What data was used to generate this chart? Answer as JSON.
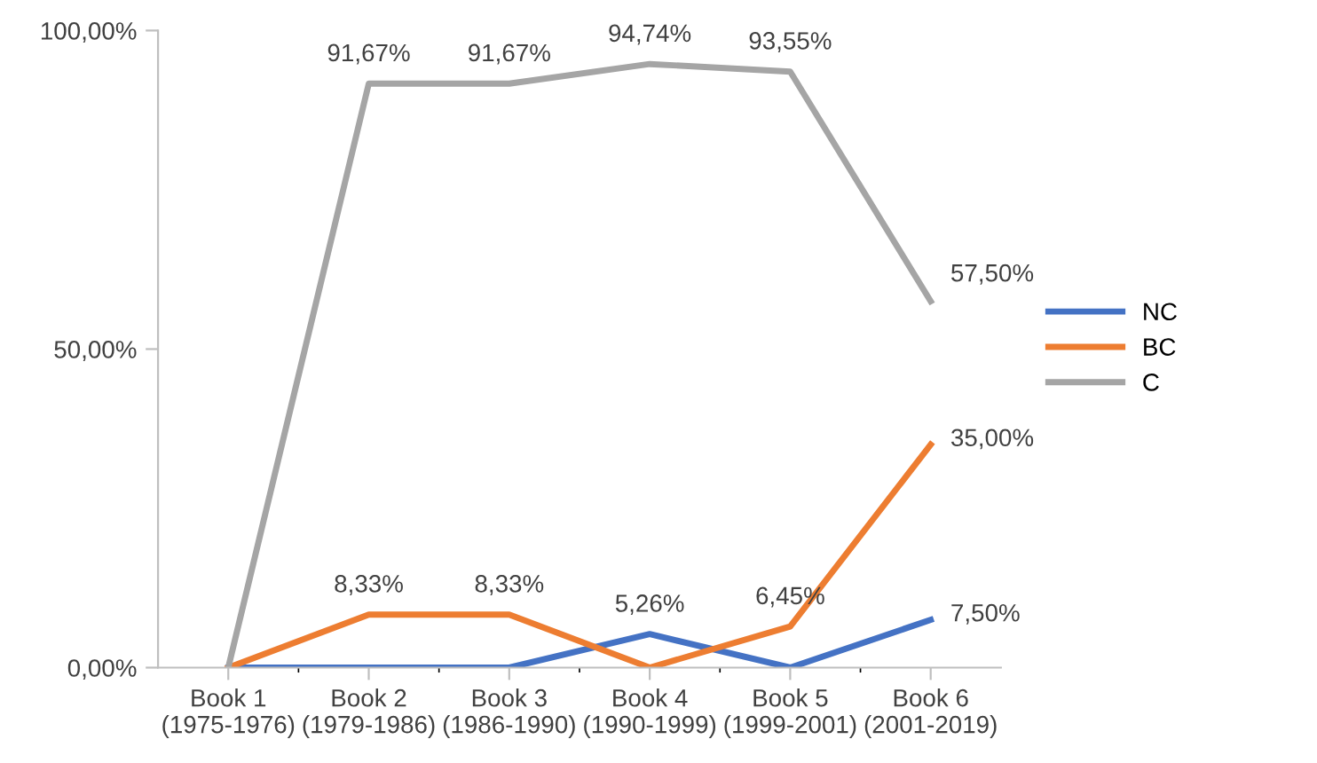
{
  "chart_data": {
    "type": "line",
    "categories": [
      "Book 1\n(1975-1976)",
      "Book 2\n(1979-1986)",
      "Book 3\n(1986-1990)",
      "Book 4\n(1990-1999)",
      "Book 5\n(1999-2001)",
      "Book 6\n(2001-2019)"
    ],
    "series": [
      {
        "name": "NC",
        "color": "#4472c4",
        "values": [
          0,
          0,
          0,
          5.26,
          0,
          7.5
        ],
        "value_labels": [
          null,
          null,
          null,
          "5,26%",
          null,
          "7,50%"
        ]
      },
      {
        "name": "BC",
        "color": "#ed7d31",
        "values": [
          0,
          8.33,
          8.33,
          0,
          6.45,
          35
        ],
        "value_labels": [
          null,
          "8,33%",
          "8,33%",
          null,
          "6,45%",
          "35,00%"
        ]
      },
      {
        "name": "C",
        "color": "#a5a5a5",
        "values": [
          0,
          91.67,
          91.67,
          94.74,
          93.55,
          57.5
        ],
        "value_labels": [
          null,
          "91,67%",
          "91,67%",
          "94,74%",
          "93,55%",
          "57,50%"
        ]
      }
    ],
    "ylim": [
      0,
      100
    ],
    "yticks": [
      {
        "value": 0,
        "label": "0,00%"
      },
      {
        "value": 50,
        "label": "50,00%"
      },
      {
        "value": 100,
        "label": "100,00%"
      }
    ],
    "grid": false,
    "legend": "right",
    "marker": "none",
    "line_style": "solid"
  }
}
